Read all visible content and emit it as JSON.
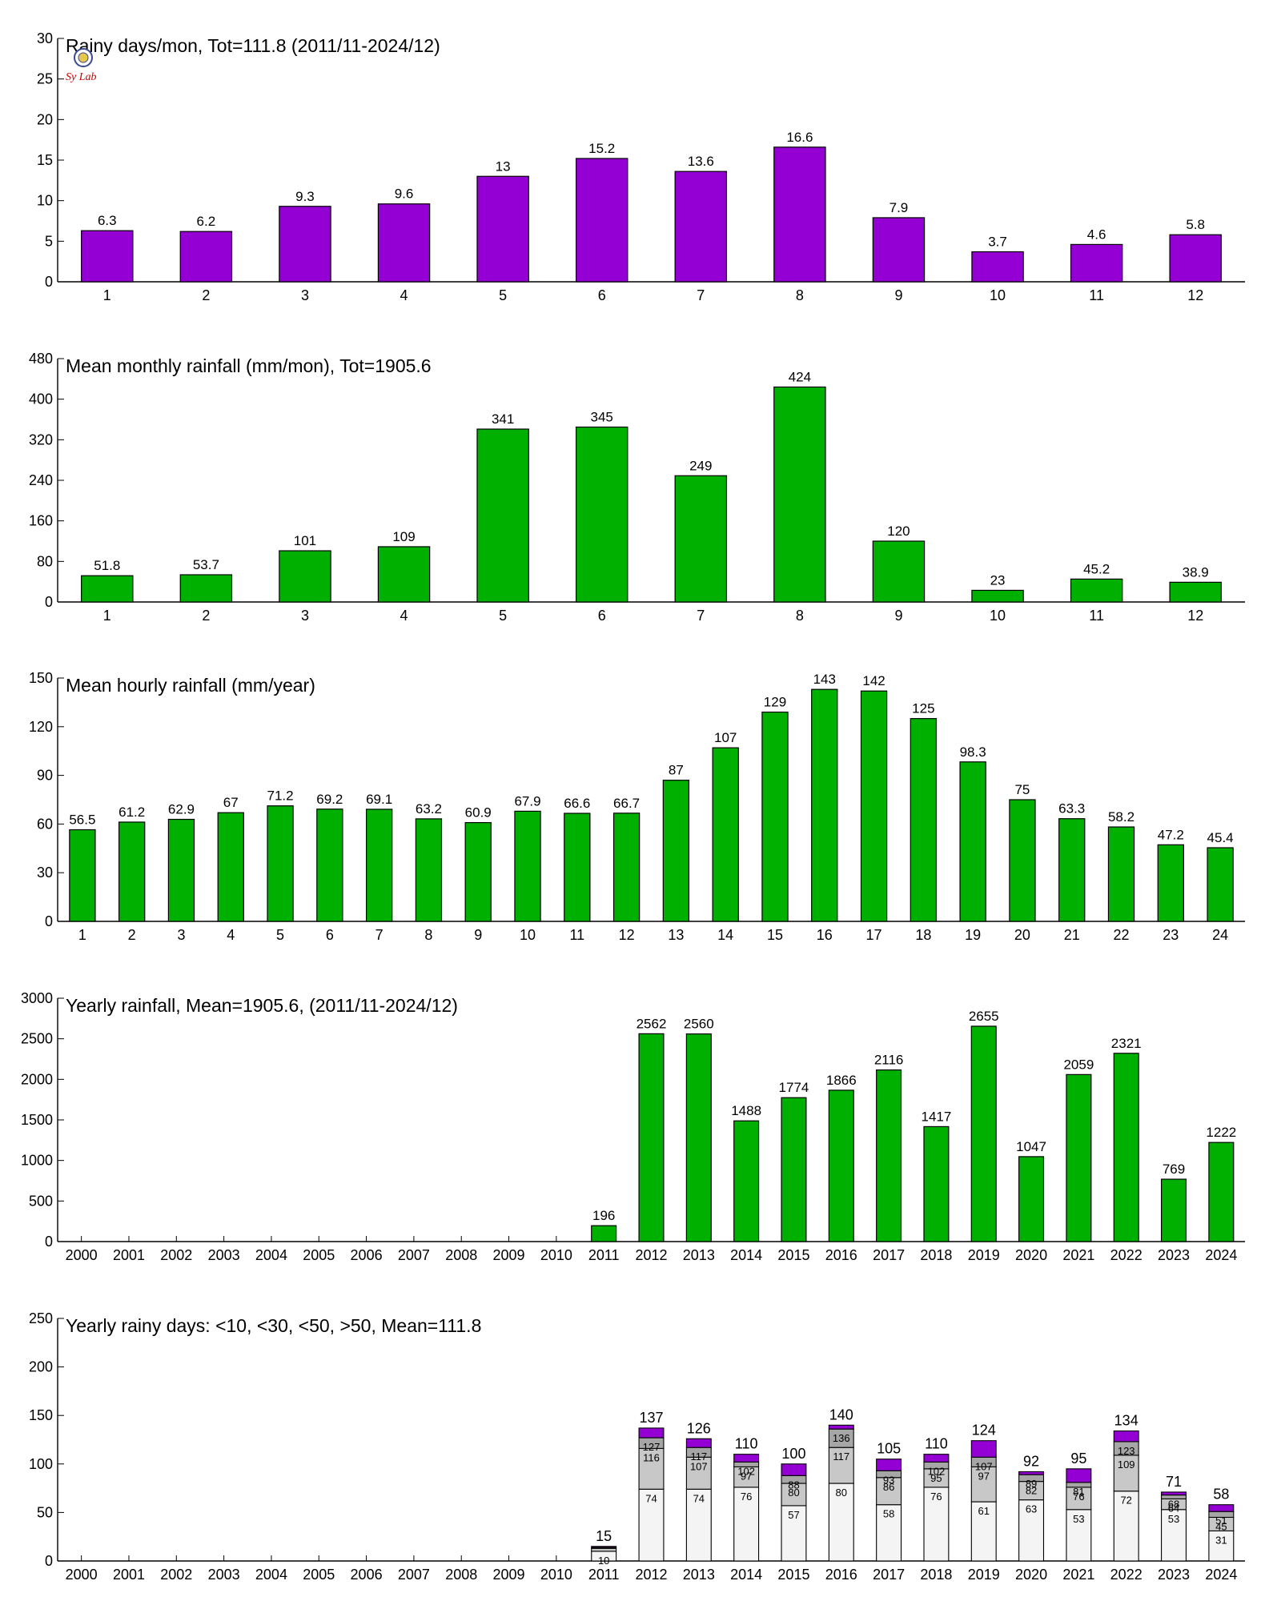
{
  "colors": {
    "purple": "#9400D3",
    "green": "#00B000",
    "dark": "#2b2b2b",
    "grey": "#a6a6a6",
    "lightgrey": "#c8c8c8",
    "white": "#f4f4f4"
  },
  "logo": {
    "text": "Sy Lab"
  },
  "chart_data": [
    {
      "type": "bar",
      "title": "Rainy days/mon, Tot=111.8 (2011/11-2024/12)",
      "categories": [
        "1",
        "2",
        "3",
        "4",
        "5",
        "6",
        "7",
        "8",
        "9",
        "10",
        "11",
        "12"
      ],
      "values": [
        6.3,
        6.2,
        9.3,
        9.6,
        13,
        15.2,
        13.6,
        16.6,
        7.9,
        3.7,
        4.6,
        5.8
      ],
      "labels": [
        "6.3",
        "6.2",
        "9.3",
        "9.6",
        "13",
        "15.2",
        "13.6",
        "16.6",
        "7.9",
        "3.7",
        "4.6",
        "5.8"
      ],
      "ylim": [
        0,
        30
      ],
      "yticks": [
        0,
        5,
        10,
        15,
        20,
        25,
        30
      ],
      "color": "#9400D3"
    },
    {
      "type": "bar",
      "title": "Mean monthly rainfall (mm/mon), Tot=1905.6",
      "categories": [
        "1",
        "2",
        "3",
        "4",
        "5",
        "6",
        "7",
        "8",
        "9",
        "10",
        "11",
        "12"
      ],
      "values": [
        51.8,
        53.7,
        101,
        109,
        341,
        345,
        249,
        424,
        120,
        23,
        45.2,
        38.9
      ],
      "labels": [
        "51.8",
        "53.7",
        "101",
        "109",
        "341",
        "345",
        "249",
        "424",
        "120",
        "23",
        "45.2",
        "38.9"
      ],
      "ylim": [
        0,
        480
      ],
      "yticks": [
        0,
        80,
        160,
        240,
        320,
        400,
        480
      ],
      "color": "#00B000"
    },
    {
      "type": "bar",
      "title": "Mean hourly rainfall (mm/year)",
      "categories": [
        "1",
        "2",
        "3",
        "4",
        "5",
        "6",
        "7",
        "8",
        "9",
        "10",
        "11",
        "12",
        "13",
        "14",
        "15",
        "16",
        "17",
        "18",
        "19",
        "20",
        "21",
        "22",
        "23",
        "24"
      ],
      "values": [
        56.5,
        61.2,
        62.9,
        67,
        71.2,
        69.2,
        69.1,
        63.2,
        60.9,
        67.9,
        66.6,
        66.7,
        87,
        107,
        129,
        143,
        142,
        125,
        98.3,
        75,
        63.3,
        58.2,
        47.2,
        45.4
      ],
      "labels": [
        "56.5",
        "61.2",
        "62.9",
        "67",
        "71.2",
        "69.2",
        "69.1",
        "63.2",
        "60.9",
        "67.9",
        "66.6",
        "66.7",
        "87",
        "107",
        "129",
        "143",
        "142",
        "125",
        "98.3",
        "75",
        "63.3",
        "58.2",
        "47.2",
        "45.4"
      ],
      "ylim": [
        0,
        150
      ],
      "yticks": [
        0,
        30,
        60,
        90,
        120,
        150
      ],
      "color": "#00B000"
    },
    {
      "type": "bar",
      "title": "Yearly rainfall, Mean=1905.6, (2011/11-2024/12)",
      "categories": [
        "2000",
        "2001",
        "2002",
        "2003",
        "2004",
        "2005",
        "2006",
        "2007",
        "2008",
        "2009",
        "2010",
        "2011",
        "2012",
        "2013",
        "2014",
        "2015",
        "2016",
        "2017",
        "2018",
        "2019",
        "2020",
        "2021",
        "2022",
        "2023",
        "2024"
      ],
      "values": [
        null,
        null,
        null,
        null,
        null,
        null,
        null,
        null,
        null,
        null,
        null,
        196,
        2562,
        2560,
        1488,
        1774,
        1866,
        2116,
        1417,
        2655,
        1047,
        2059,
        2321,
        769,
        1222
      ],
      "labels": [
        null,
        null,
        null,
        null,
        null,
        null,
        null,
        null,
        null,
        null,
        null,
        "196",
        "2562",
        "2560",
        "1488",
        "1774",
        "1866",
        "2116",
        "1417",
        "2655",
        "1047",
        "2059",
        "2321",
        "769",
        "1222"
      ],
      "ylim": [
        0,
        3000
      ],
      "yticks": [
        0,
        500,
        1000,
        1500,
        2000,
        2500,
        3000
      ],
      "color": "#00B000"
    },
    {
      "type": "bar",
      "stacked": true,
      "title": "Yearly rainy days: <10, <30, <50, >50, Mean=111.8",
      "categories": [
        "2000",
        "2001",
        "2002",
        "2003",
        "2004",
        "2005",
        "2006",
        "2007",
        "2008",
        "2009",
        "2010",
        "2011",
        "2012",
        "2013",
        "2014",
        "2015",
        "2016",
        "2017",
        "2018",
        "2019",
        "2020",
        "2021",
        "2022",
        "2023",
        "2024"
      ],
      "cumulative": [
        null,
        null,
        null,
        null,
        null,
        null,
        null,
        null,
        null,
        null,
        null,
        [
          10,
          13,
          14,
          15
        ],
        [
          74,
          116,
          127,
          137
        ],
        [
          74,
          107,
          117,
          126
        ],
        [
          76,
          97,
          102,
          110
        ],
        [
          57,
          80,
          88,
          100
        ],
        [
          80,
          117,
          136,
          140
        ],
        [
          58,
          86,
          93,
          105
        ],
        [
          76,
          95,
          102,
          110
        ],
        [
          61,
          97,
          107,
          124
        ],
        [
          63,
          82,
          89,
          92
        ],
        [
          53,
          76,
          81,
          95
        ],
        [
          72,
          109,
          123,
          134
        ],
        [
          53,
          64,
          68,
          71
        ],
        [
          31,
          45,
          51,
          58
        ]
      ],
      "segment_labels": [
        null,
        null,
        null,
        null,
        null,
        null,
        null,
        null,
        null,
        null,
        null,
        [
          "10",
          "",
          "",
          ""
        ],
        [
          "74",
          "116",
          "127",
          ""
        ],
        [
          "74",
          "107",
          "117",
          ""
        ],
        [
          "76",
          "97",
          "102",
          ""
        ],
        [
          "57",
          "80",
          "88",
          ""
        ],
        [
          "80",
          "117",
          "136",
          ""
        ],
        [
          "58",
          "86",
          "93",
          ""
        ],
        [
          "76",
          "95",
          "102",
          ""
        ],
        [
          "61",
          "97",
          "107",
          ""
        ],
        [
          "63",
          "82",
          "89",
          ""
        ],
        [
          "53",
          "76",
          "81",
          ""
        ],
        [
          "72",
          "109",
          "123",
          ""
        ],
        [
          "53",
          "64",
          "68",
          ""
        ],
        [
          "31",
          "45",
          "51",
          ""
        ]
      ],
      "totals": [
        null,
        null,
        null,
        null,
        null,
        null,
        null,
        null,
        null,
        null,
        null,
        "15",
        "137",
        "126",
        "110",
        "100",
        "140",
        "105",
        "110",
        "124",
        "92",
        "95",
        "134",
        "71",
        "58"
      ],
      "ylim": [
        0,
        250
      ],
      "yticks": [
        0,
        50,
        100,
        150,
        200,
        250
      ],
      "segment_colors": [
        "#f4f4f4",
        "#c8c8c8",
        "#a6a6a6",
        "#9400D3"
      ]
    }
  ]
}
